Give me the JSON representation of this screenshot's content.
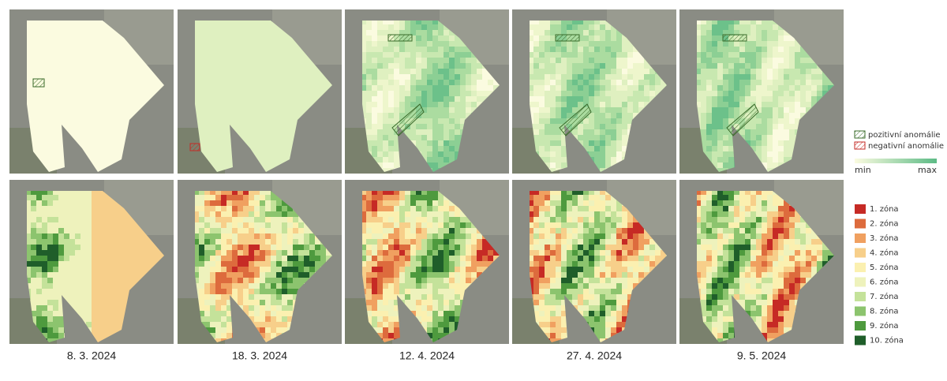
{
  "panels": [
    {
      "date": "8. 3. 2024"
    },
    {
      "date": "18. 3. 2024"
    },
    {
      "date": "12. 4. 2024"
    },
    {
      "date": "27. 4. 2024"
    },
    {
      "date": "9. 5. 2024"
    }
  ],
  "anomaly_legend": [
    {
      "label": "pozitivní anomálie"
    },
    {
      "label": "negativní anomálie"
    }
  ],
  "index_legend": {
    "min": "min",
    "max": "max"
  },
  "zone_legend": [
    {
      "label": "1. zóna",
      "color": "#c62a25"
    },
    {
      "label": "2. zóna",
      "color": "#dd6b3d"
    },
    {
      "label": "3. zóna",
      "color": "#f0a060"
    },
    {
      "label": "4. zóna",
      "color": "#f7cf8a"
    },
    {
      "label": "5. zóna",
      "color": "#fbf0b0"
    },
    {
      "label": "6. zóna",
      "color": "#eef2bc"
    },
    {
      "label": "7. zóna",
      "color": "#c4e29a"
    },
    {
      "label": "8. zóna",
      "color": "#8cc46e"
    },
    {
      "label": "9. zóna",
      "color": "#4e9a3e"
    },
    {
      "label": "10. zóna",
      "color": "#1f5e2a"
    }
  ]
}
